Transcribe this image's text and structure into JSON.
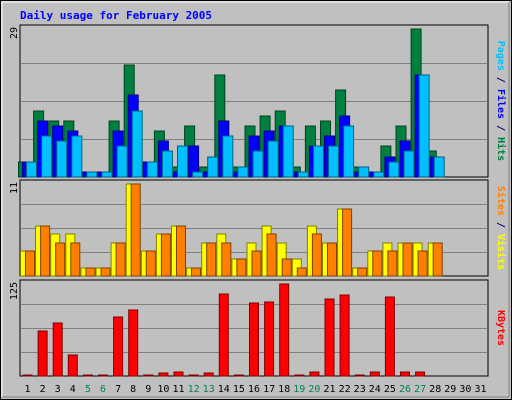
{
  "chart_data": {
    "type": "bar",
    "title": "Daily usage for February 2005",
    "days": [
      "1",
      "2",
      "3",
      "4",
      "5",
      "6",
      "7",
      "8",
      "9",
      "10",
      "11",
      "12",
      "13",
      "14",
      "15",
      "16",
      "17",
      "18",
      "19",
      "20",
      "21",
      "22",
      "23",
      "24",
      "25",
      "26",
      "27",
      "28",
      "29",
      "30",
      "31"
    ],
    "weekend_days": [
      "5",
      "6",
      "12",
      "13",
      "19",
      "20",
      "26",
      "27"
    ],
    "panels": [
      {
        "id": "hits-files-pages",
        "ymax": 29,
        "ymax_label": "29",
        "series": [
          {
            "name": "Hits",
            "color": "#008040",
            "values": [
              3,
              13,
              11,
              11,
              1,
              1,
              11,
              22,
              3,
              9,
              2,
              10,
              2,
              20,
              2,
              10,
              12,
              13,
              2,
              10,
              11,
              17,
              2,
              1,
              6,
              10,
              29,
              5,
              0,
              0,
              0
            ]
          },
          {
            "name": "Files",
            "color": "#0000ff",
            "values": [
              3,
              11,
              10,
              9,
              1,
              1,
              9,
              16,
              3,
              7,
              1,
              6,
              1,
              11,
              1,
              8,
              9,
              10,
              1,
              6,
              8,
              12,
              1,
              1,
              4,
              7,
              20,
              4,
              0,
              0,
              0
            ]
          },
          {
            "name": "Pages",
            "color": "#00c0ff",
            "values": [
              3,
              8,
              7,
              8,
              1,
              1,
              6,
              13,
              3,
              5,
              6,
              1,
              4,
              8,
              2,
              5,
              7,
              10,
              1,
              6,
              6,
              10,
              2,
              1,
              3,
              5,
              20,
              4,
              0,
              0,
              0
            ]
          }
        ],
        "vlabel": [
          {
            "text": "Pages",
            "color": "#00c0ff"
          },
          {
            "text": " / ",
            "color": "#000080"
          },
          {
            "text": "Files",
            "color": "#0000ff"
          },
          {
            "text": " / ",
            "color": "#000080"
          },
          {
            "text": "Hits",
            "color": "#008040"
          }
        ]
      },
      {
        "id": "visits-sites",
        "ymax": 11,
        "ymax_label": "11",
        "series": [
          {
            "name": "Visits",
            "color": "#ffff00",
            "values": [
              3,
              6,
              5,
              5,
              1,
              1,
              4,
              11,
              3,
              5,
              6,
              1,
              4,
              5,
              2,
              4,
              6,
              4,
              2,
              6,
              4,
              8,
              1,
              3,
              4,
              4,
              4,
              4,
              0,
              0,
              0
            ]
          },
          {
            "name": "Sites",
            "color": "#ff8000",
            "values": [
              3,
              6,
              4,
              4,
              1,
              1,
              4,
              11,
              3,
              5,
              6,
              1,
              4,
              4,
              2,
              3,
              5,
              2,
              1,
              5,
              4,
              8,
              1,
              3,
              3,
              4,
              3,
              4,
              0,
              0,
              0
            ]
          }
        ],
        "vlabel": [
          {
            "text": "Sites",
            "color": "#ff8000"
          },
          {
            "text": " / ",
            "color": "#000080"
          },
          {
            "text": "Visits",
            "color": "#ffff00"
          }
        ]
      },
      {
        "id": "kbytes",
        "ymax": 125,
        "ymax_label": "125",
        "series": [
          {
            "name": "KBytes",
            "color": "#ff0000",
            "values": [
              2,
              61,
              72,
              28,
              2,
              2,
              80,
              90,
              2,
              4,
              5,
              2,
              4,
              112,
              2,
              99,
              101,
              125,
              2,
              5,
              105,
              110,
              2,
              5,
              107,
              5,
              5,
              0,
              0,
              0,
              0
            ]
          }
        ],
        "vlabel": [
          {
            "text": "KBytes",
            "color": "#ff0000"
          }
        ]
      }
    ]
  }
}
